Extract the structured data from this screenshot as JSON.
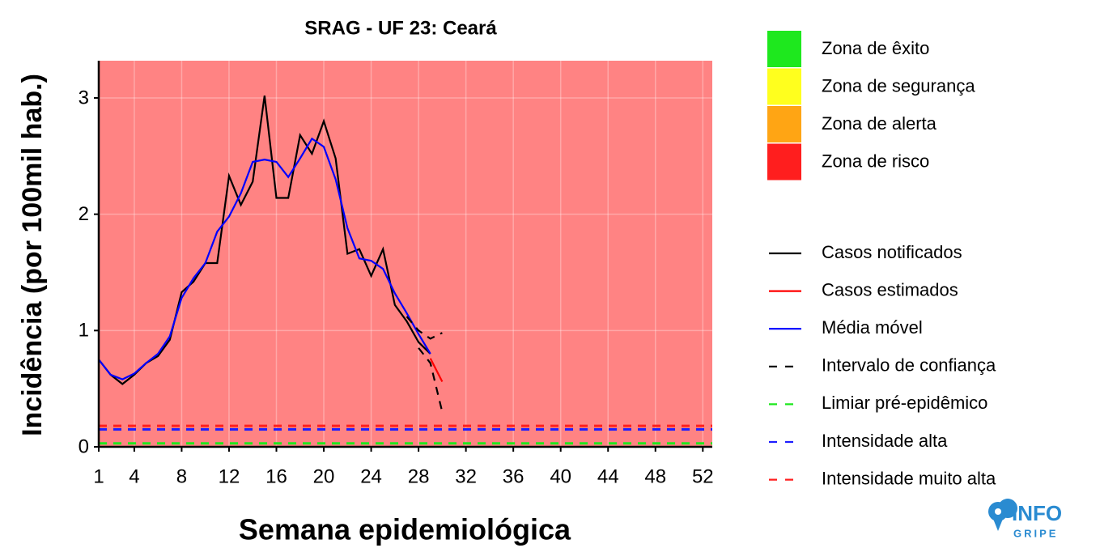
{
  "chart_data": {
    "type": "line",
    "title": "SRAG - UF 23: Ceará",
    "x_label": "Semana epidemiológica",
    "y_label": "Incidência (por 100mil hab.)",
    "x": [
      1,
      2,
      3,
      4,
      5,
      6,
      7,
      8,
      9,
      10,
      11,
      12,
      13,
      14,
      15,
      16,
      17,
      18,
      19,
      20,
      21,
      22,
      23,
      24,
      25,
      26,
      27,
      28,
      29,
      30
    ],
    "xlim": [
      1,
      52.8
    ],
    "ylim": [
      0,
      3.32
    ],
    "xticks": [
      1,
      4,
      8,
      12,
      16,
      20,
      24,
      28,
      32,
      36,
      40,
      44,
      48,
      52
    ],
    "yticks": [
      0,
      1,
      2,
      3
    ],
    "grid": true,
    "zones": [
      {
        "name": "Zona de êxito",
        "color": "#1ee81e"
      },
      {
        "name": "Zona de segurança",
        "color": "#ffff1e"
      },
      {
        "name": "Zona de alerta",
        "color": "#ffa514"
      },
      {
        "name": "Zona de risco",
        "color": "#ff1e1e"
      }
    ],
    "series": [
      {
        "name": "Casos notificados",
        "color": "#000000",
        "dashed": false,
        "values": [
          0.75,
          0.62,
          0.54,
          0.62,
          0.72,
          0.78,
          0.92,
          1.33,
          1.42,
          1.58,
          1.58,
          2.33,
          2.08,
          2.28,
          3.02,
          2.14,
          2.14,
          2.68,
          2.52,
          2.8,
          2.48,
          1.66,
          1.7,
          1.47,
          1.7,
          1.22,
          1.08,
          0.9,
          0.8,
          null
        ]
      },
      {
        "name": "Casos estimados",
        "color": "#ff0000",
        "dashed": false,
        "values": [
          null,
          null,
          null,
          null,
          null,
          null,
          null,
          null,
          null,
          null,
          null,
          null,
          null,
          null,
          null,
          null,
          null,
          null,
          null,
          null,
          null,
          null,
          null,
          null,
          null,
          null,
          null,
          null,
          0.76,
          0.56
        ]
      },
      {
        "name": "Média móvel",
        "color": "#0000ff",
        "dashed": false,
        "values": [
          0.75,
          0.62,
          0.58,
          0.63,
          0.72,
          0.8,
          0.95,
          1.28,
          1.45,
          1.58,
          1.85,
          1.98,
          2.18,
          2.45,
          2.47,
          2.45,
          2.32,
          2.48,
          2.65,
          2.58,
          2.3,
          1.88,
          1.62,
          1.6,
          1.53,
          1.32,
          1.15,
          0.97,
          0.8,
          null
        ]
      },
      {
        "name": "Intervalo de confiança",
        "color": "#000000",
        "dashed": true,
        "values": [
          null,
          null,
          null,
          null,
          null,
          null,
          null,
          null,
          null,
          null,
          null,
          null,
          null,
          null,
          null,
          null,
          null,
          null,
          null,
          null,
          null,
          null,
          null,
          null,
          null,
          null,
          1.12,
          1.0,
          0.93,
          0.98
        ],
        "lower": [
          null,
          null,
          null,
          null,
          null,
          null,
          null,
          null,
          null,
          null,
          null,
          null,
          null,
          null,
          null,
          null,
          null,
          null,
          null,
          null,
          null,
          null,
          null,
          null,
          null,
          null,
          null,
          0.85,
          0.72,
          0.3
        ]
      }
    ],
    "thresholds": [
      {
        "name": "Limiar pré-epidêmico",
        "color": "#1ee81e",
        "value": 0.03
      },
      {
        "name": "Intensidade alta",
        "color": "#1e1eff",
        "value": 0.15
      },
      {
        "name": "Intensidade muito alta",
        "color": "#ff1e1e",
        "value": 0.18
      }
    ],
    "logo": {
      "line1": "INFO",
      "line2": "GRIPE"
    }
  }
}
